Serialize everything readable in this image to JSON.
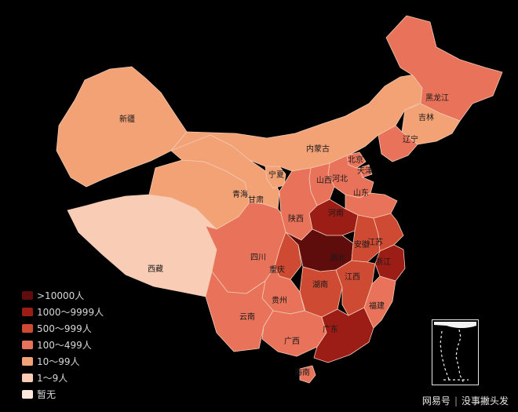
{
  "colors": {
    "level_0": "#5e0c0c",
    "level_1": "#9c1c16",
    "level_2": "#cf4a33",
    "level_3": "#e9735a",
    "level_4": "#f3a276",
    "level_5": "#f9cdb5",
    "level_6": "#fde8dc"
  },
  "legend": [
    {
      "label": ">10000人",
      "level": 0
    },
    {
      "label": "1000～9999人",
      "level": 1
    },
    {
      "label": "500～999人",
      "level": 2
    },
    {
      "label": "100～499人",
      "level": 3
    },
    {
      "label": "10～99人",
      "level": 4
    },
    {
      "label": "1～9人",
      "level": 5
    },
    {
      "label": "暂无",
      "level": 6
    }
  ],
  "provinces": [
    {
      "name": "新疆",
      "level": 4
    },
    {
      "name": "西藏",
      "level": 5
    },
    {
      "name": "青海",
      "level": 4
    },
    {
      "name": "甘肃",
      "level": 4
    },
    {
      "name": "宁夏",
      "level": 4
    },
    {
      "name": "内蒙古",
      "level": 4
    },
    {
      "name": "黑龙江",
      "level": 3
    },
    {
      "name": "吉林",
      "level": 4
    },
    {
      "name": "辽宁",
      "level": 3
    },
    {
      "name": "北京",
      "level": 3
    },
    {
      "name": "天津",
      "level": 3
    },
    {
      "name": "河北",
      "level": 3
    },
    {
      "name": "山西",
      "level": 3
    },
    {
      "name": "山东",
      "level": 3
    },
    {
      "name": "河南",
      "level": 1
    },
    {
      "name": "陕西",
      "level": 3
    },
    {
      "name": "四川",
      "level": 3
    },
    {
      "name": "重庆",
      "level": 2
    },
    {
      "name": "湖北",
      "level": 0
    },
    {
      "name": "安徽",
      "level": 2
    },
    {
      "name": "江苏",
      "level": 2
    },
    {
      "name": "浙江",
      "level": 1
    },
    {
      "name": "湖南",
      "level": 2
    },
    {
      "name": "江西",
      "level": 2
    },
    {
      "name": "贵州",
      "level": 3
    },
    {
      "name": "云南",
      "level": 3
    },
    {
      "name": "广西",
      "level": 3
    },
    {
      "name": "广东",
      "level": 1
    },
    {
      "name": "福建",
      "level": 3
    },
    {
      "name": "海南",
      "level": 3
    }
  ],
  "watermark": {
    "platform": "网易号",
    "author": "没事撇头发"
  }
}
